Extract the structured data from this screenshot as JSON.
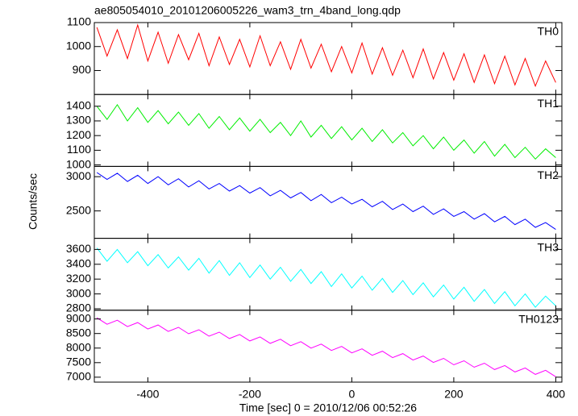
{
  "chart_data": {
    "type": "line",
    "title": "ae805054010_20101206005226_wam3_trn_4band_long.qdp",
    "xlabel": "Time [sec] 0 = 2010/12/06 00:52:26",
    "ylabel": "Counts/sec",
    "xlim": [
      -505,
      412
    ],
    "xticks": [
      -400,
      -200,
      0,
      200,
      400
    ],
    "x": [
      -500,
      -480,
      -460,
      -440,
      -420,
      -400,
      -380,
      -360,
      -340,
      -320,
      -300,
      -280,
      -260,
      -240,
      -220,
      -200,
      -180,
      -160,
      -140,
      -120,
      -100,
      -80,
      -60,
      -40,
      -20,
      0,
      20,
      40,
      60,
      80,
      100,
      120,
      140,
      160,
      180,
      200,
      220,
      240,
      260,
      280,
      300,
      320,
      340,
      360,
      380,
      400
    ],
    "series": [
      {
        "name": "TH0",
        "color": "#ff0000",
        "ylim": [
          800,
          1100
        ],
        "yticks": [
          900,
          1000,
          1100
        ],
        "values": [
          1080,
          960,
          1070,
          950,
          1090,
          940,
          1060,
          930,
          1050,
          945,
          1055,
          920,
          1040,
          925,
          1030,
          915,
          1045,
          920,
          1020,
          905,
          1030,
          910,
          1010,
          895,
          1000,
          890,
          1015,
          885,
          995,
          880,
          985,
          870,
          990,
          865,
          975,
          860,
          970,
          850,
          965,
          845,
          960,
          840,
          950,
          835,
          940,
          850
        ]
      },
      {
        "name": "TH1",
        "color": "#00ee00",
        "ylim": [
          990,
          1480
        ],
        "yticks": [
          1000,
          1100,
          1200,
          1300,
          1400
        ],
        "values": [
          1400,
          1310,
          1410,
          1300,
          1390,
          1290,
          1370,
          1280,
          1360,
          1270,
          1350,
          1250,
          1330,
          1240,
          1320,
          1230,
          1310,
          1220,
          1290,
          1200,
          1300,
          1190,
          1270,
          1180,
          1260,
          1170,
          1250,
          1160,
          1240,
          1150,
          1220,
          1130,
          1200,
          1110,
          1190,
          1100,
          1170,
          1080,
          1160,
          1060,
          1140,
          1050,
          1120,
          1040,
          1110,
          1050
        ]
      },
      {
        "name": "TH2",
        "color": "#0000ff",
        "ylim": [
          2100,
          3150
        ],
        "yticks": [
          2500,
          3000
        ],
        "values": [
          3060,
          2960,
          3050,
          2930,
          3020,
          2900,
          3000,
          2880,
          2970,
          2850,
          2940,
          2820,
          2900,
          2790,
          2870,
          2760,
          2840,
          2720,
          2800,
          2690,
          2770,
          2650,
          2740,
          2620,
          2700,
          2600,
          2670,
          2560,
          2640,
          2520,
          2600,
          2490,
          2570,
          2450,
          2530,
          2420,
          2490,
          2380,
          2460,
          2340,
          2420,
          2300,
          2380,
          2260,
          2330,
          2230
        ]
      },
      {
        "name": "TH3",
        "color": "#00ffff",
        "ylim": [
          2780,
          3750
        ],
        "yticks": [
          2800,
          3000,
          3200,
          3400,
          3600
        ],
        "values": [
          3620,
          3440,
          3600,
          3420,
          3570,
          3380,
          3530,
          3350,
          3500,
          3320,
          3480,
          3280,
          3450,
          3250,
          3420,
          3220,
          3390,
          3200,
          3360,
          3170,
          3330,
          3140,
          3300,
          3100,
          3270,
          3080,
          3240,
          3050,
          3210,
          3020,
          3180,
          2990,
          3150,
          2960,
          3120,
          2930,
          3090,
          2900,
          3060,
          2870,
          3030,
          2840,
          3000,
          2820,
          2970,
          2840
        ]
      },
      {
        "name": "TH0123",
        "color": "#ff00ff",
        "ylim": [
          6830,
          9300
        ],
        "yticks": [
          7000,
          7500,
          8000,
          8500,
          9000
        ],
        "values": [
          9040,
          8819,
          8958,
          8737,
          8876,
          8655,
          8794,
          8573,
          8712,
          8491,
          8630,
          8409,
          8548,
          8327,
          8466,
          8245,
          8384,
          8163,
          8302,
          8081,
          8220,
          7999,
          8138,
          7917,
          8056,
          7835,
          7974,
          7753,
          7892,
          7671,
          7810,
          7589,
          7728,
          7507,
          7646,
          7425,
          7564,
          7343,
          7482,
          7261,
          7400,
          7179,
          7318,
          7097,
          7236,
          7015
        ]
      }
    ]
  }
}
